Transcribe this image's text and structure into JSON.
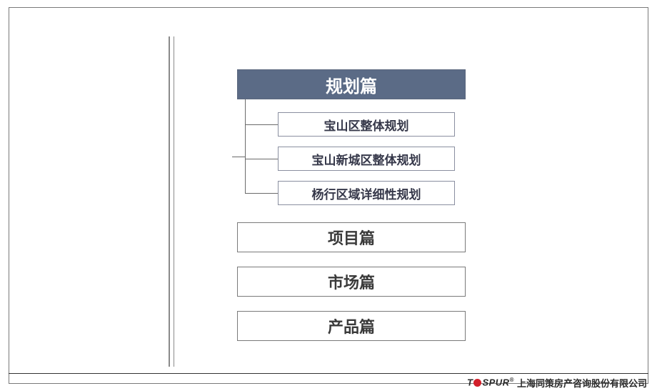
{
  "colors": {
    "frame_border": "#7a7a7a",
    "vline": "#8a8a8a",
    "title_bg": "#5b6b86",
    "title_text": "#ffffff",
    "sub_text": "#36384a",
    "sub_border": "#8a8fa0",
    "sub_border_width": "1px",
    "big_text": "#3a3a3a",
    "big_border": "#7a7a7a",
    "big_border_width": "1px",
    "connector": "#6a6a6a",
    "footer_line": "#333333",
    "footer_text": "#2a2a2a",
    "bullet": "#d21f2a"
  },
  "title": {
    "label": "规划篇"
  },
  "subs": {
    "s1": "宝山区整体规划",
    "s2": "宝山新城区整体规划",
    "s3": "杨行区域详细性规划"
  },
  "sections": {
    "b2": "项目篇",
    "b3": "市场篇",
    "b4": "产品篇"
  },
  "footer": {
    "logo_left": "T",
    "logo_right": "SPUR",
    "tm": "®",
    "company": "上海同策房产咨询股份有限公司"
  }
}
